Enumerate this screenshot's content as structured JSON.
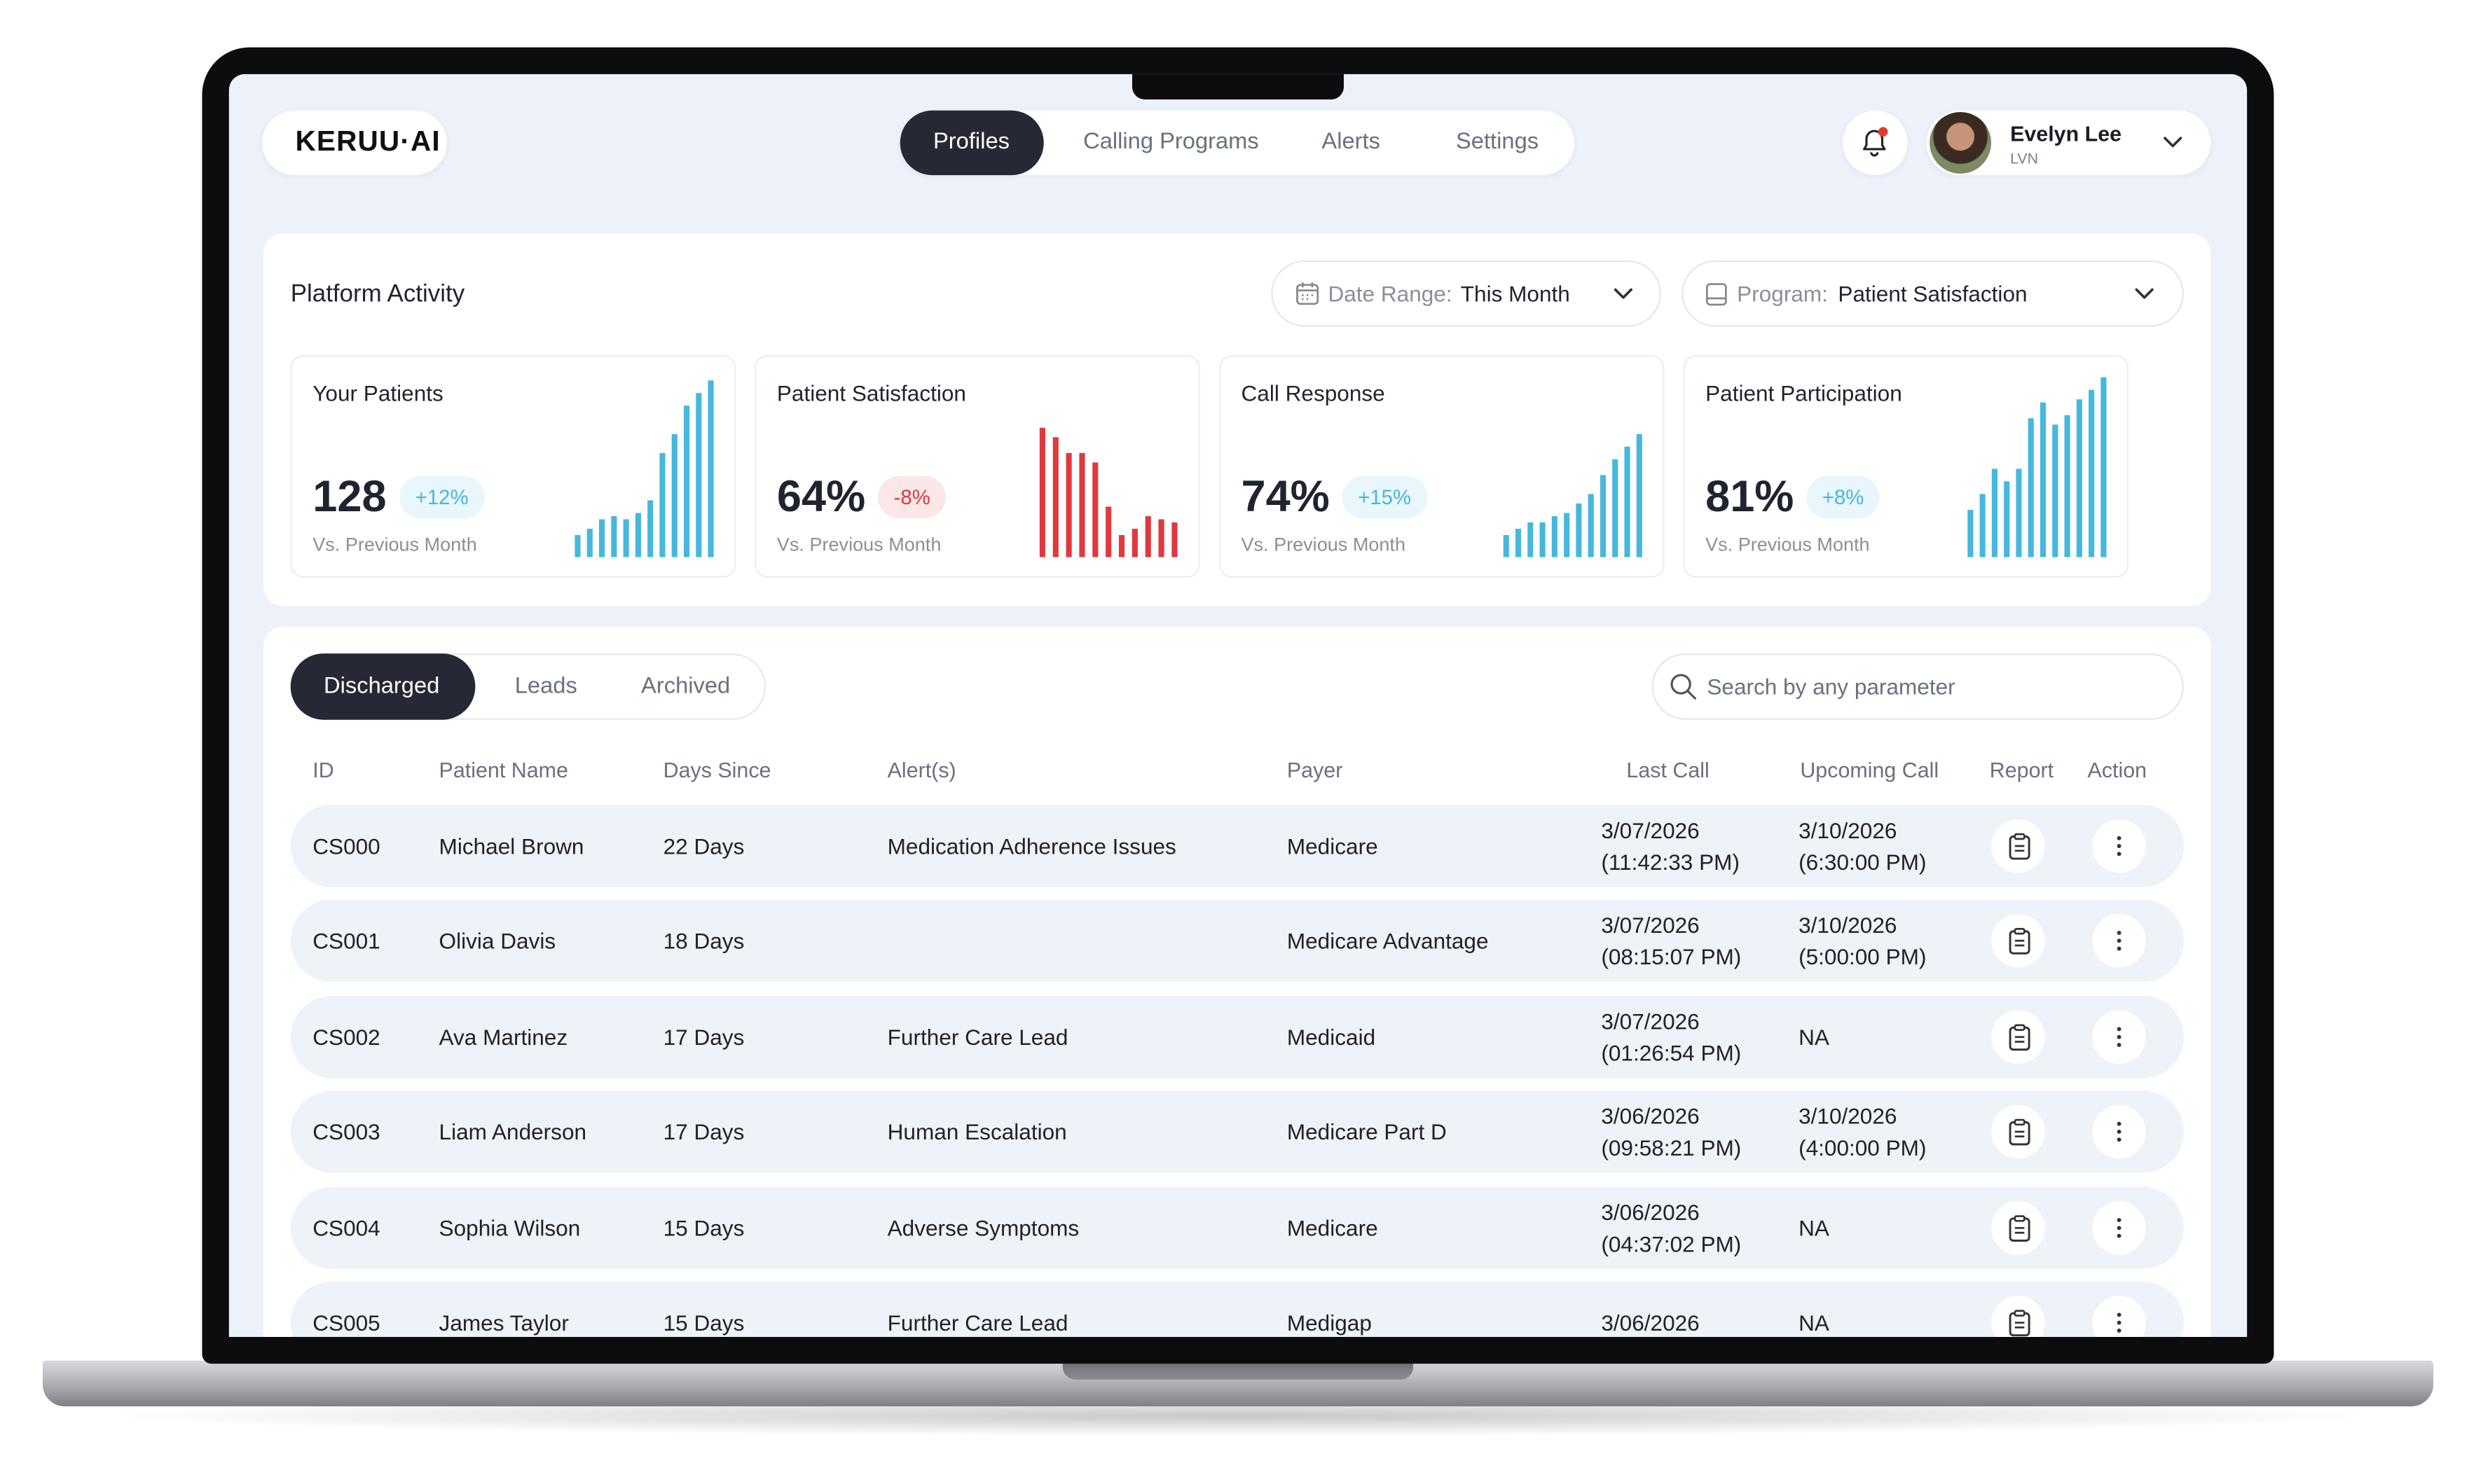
{
  "header": {
    "logo": "KERUU·AI",
    "nav": [
      "Profiles",
      "Calling Programs",
      "Alerts",
      "Settings"
    ],
    "user": {
      "name": "Evelyn Lee",
      "role": "LVN"
    }
  },
  "activity": {
    "title": "Platform Activity",
    "date_range": {
      "label": "Date Range:",
      "value": "This Month"
    },
    "program": {
      "label": "Program:",
      "value": "Patient Satisfaction"
    },
    "stats": [
      {
        "title": "Your Patients",
        "value": "128",
        "change": "+12%",
        "note": "Vs. Previous Month",
        "color": "#45b8dc",
        "bars": [
          14,
          18,
          24,
          26,
          24,
          28,
          36,
          66,
          78,
          96,
          104,
          112
        ]
      },
      {
        "title": "Patient Satisfaction",
        "value": "64%",
        "change": "-8%",
        "note": "Vs. Previous Month",
        "color": "#e0383d",
        "bars": [
          82,
          76,
          66,
          66,
          60,
          32,
          14,
          18,
          26,
          24,
          22
        ]
      },
      {
        "title": "Call Response",
        "value": "74%",
        "change": "+15%",
        "note": "Vs. Previous Month",
        "color": "#45b8dc",
        "bars": [
          14,
          18,
          22,
          22,
          26,
          28,
          34,
          40,
          52,
          62,
          70,
          78
        ]
      },
      {
        "title": "Patient Participation",
        "value": "81%",
        "change": "+8%",
        "note": "Vs. Previous Month",
        "color": "#45b8dc",
        "bars": [
          30,
          40,
          56,
          48,
          56,
          88,
          98,
          84,
          90,
          100,
          106,
          114
        ]
      }
    ]
  },
  "patients": {
    "tabs": [
      "Discharged",
      "Leads",
      "Archived"
    ],
    "search_placeholder": "Search by any parameter",
    "columns": [
      "ID",
      "Patient Name",
      "Days Since",
      "Alert(s)",
      "Payer",
      "Last Call",
      "Upcoming Call",
      "Report",
      "Action"
    ],
    "rows": [
      {
        "id": "CS000",
        "name": "Michael Brown",
        "days": "22 Days",
        "alert": "Medication Adherence Issues",
        "payer": "Medicare",
        "last_call": [
          "3/07/2026",
          "(11:42:33 PM)"
        ],
        "upcoming_call": [
          "3/10/2026",
          "(6:30:00 PM)"
        ]
      },
      {
        "id": "CS001",
        "name": "Olivia Davis",
        "days": "18 Days",
        "alert": null,
        "payer": "Medicare Advantage",
        "last_call": [
          "3/07/2026",
          "(08:15:07 PM)"
        ],
        "upcoming_call": [
          "3/10/2026",
          "(5:00:00 PM)"
        ]
      },
      {
        "id": "CS002",
        "name": "Ava Martinez",
        "days": "17 Days",
        "alert": "Further Care Lead",
        "payer": "Medicaid",
        "last_call": [
          "3/07/2026",
          "(01:26:54 PM)"
        ],
        "upcoming_call": [
          "NA"
        ]
      },
      {
        "id": "CS003",
        "name": "Liam Anderson",
        "days": "17 Days",
        "alert": "Human Escalation",
        "payer": "Medicare Part D",
        "last_call": [
          "3/06/2026",
          "(09:58:21 PM)"
        ],
        "upcoming_call": [
          "3/10/2026",
          "(4:00:00 PM)"
        ]
      },
      {
        "id": "CS004",
        "name": "Sophia Wilson",
        "days": "15 Days",
        "alert": "Adverse Symptoms",
        "payer": "Medicare",
        "last_call": [
          "3/06/2026",
          "(04:37:02 PM)"
        ],
        "upcoming_call": [
          "NA"
        ]
      },
      {
        "id": "CS005",
        "name": "James Taylor",
        "days": "15 Days",
        "alert": "Further Care Lead",
        "payer": "Medigap",
        "last_call": [
          "3/06/2026"
        ],
        "upcoming_call": [
          "NA"
        ]
      }
    ]
  }
}
